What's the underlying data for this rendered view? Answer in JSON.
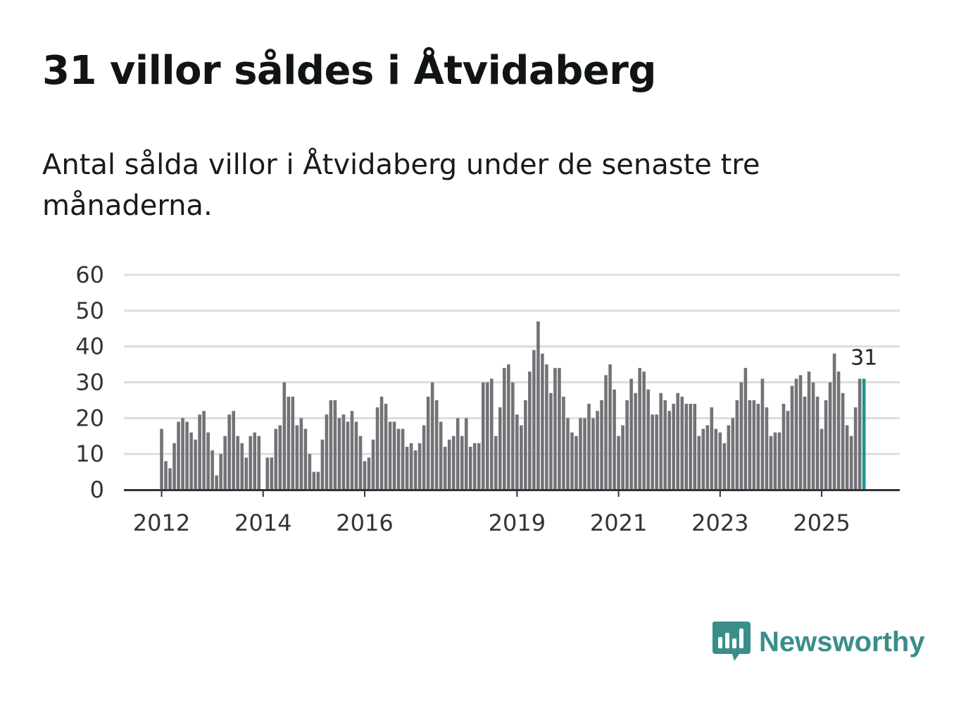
{
  "title": "31 villor såldes i Åtvidaberg",
  "subtitle": "Antal sålda villor i Åtvidaberg under de senaste tre månaderna.",
  "brand": {
    "name": "Newsworthy",
    "color": "#3a8e8a",
    "icon": "newsworthy-logo-icon"
  },
  "colors": {
    "bar": "#747177",
    "highlight": "#1a9491",
    "grid": "#dddddd",
    "axis": "#333333"
  },
  "chart_data": {
    "type": "bar",
    "title": "31 villor såldes i Åtvidaberg",
    "xlabel": "",
    "ylabel": "",
    "ylim": [
      0,
      60
    ],
    "yticks": [
      "0",
      "10",
      "20",
      "30",
      "40",
      "50",
      "60"
    ],
    "x_start": "2012-01",
    "xticks": [
      {
        "label": "2012",
        "index": 0
      },
      {
        "label": "2014",
        "index": 24
      },
      {
        "label": "2016",
        "index": 48
      },
      {
        "label": "2019",
        "index": 84
      },
      {
        "label": "2021",
        "index": 108
      },
      {
        "label": "2023",
        "index": 132
      },
      {
        "label": "2025",
        "index": 156
      }
    ],
    "highlight_label": "31",
    "values": [
      17,
      8,
      6,
      13,
      19,
      20,
      19,
      16,
      14,
      21,
      22,
      16,
      11,
      4,
      10,
      15,
      21,
      22,
      15,
      13,
      9,
      15,
      16,
      15,
      0,
      9,
      9,
      17,
      18,
      30,
      26,
      26,
      18,
      20,
      17,
      10,
      5,
      5,
      14,
      21,
      25,
      25,
      20,
      21,
      19,
      22,
      19,
      15,
      8,
      9,
      14,
      23,
      26,
      24,
      19,
      19,
      17,
      17,
      12,
      13,
      11,
      13,
      18,
      26,
      30,
      25,
      19,
      12,
      14,
      15,
      20,
      15,
      20,
      12,
      13,
      13,
      30,
      30,
      31,
      15,
      23,
      34,
      35,
      30,
      21,
      18,
      25,
      33,
      39,
      47,
      38,
      35,
      27,
      34,
      34,
      26,
      20,
      16,
      15,
      20,
      20,
      24,
      20,
      22,
      25,
      32,
      35,
      28,
      15,
      18,
      25,
      31,
      27,
      34,
      33,
      28,
      21,
      21,
      27,
      25,
      22,
      24,
      27,
      26,
      24,
      24,
      24,
      15,
      17,
      18,
      23,
      17,
      16,
      13,
      18,
      20,
      25,
      30,
      34,
      25,
      25,
      24,
      31,
      23,
      15,
      16,
      16,
      24,
      22,
      29,
      31,
      32,
      26,
      33,
      30,
      26,
      17,
      25,
      30,
      38,
      33,
      27,
      18,
      15,
      23,
      31,
      31
    ]
  }
}
